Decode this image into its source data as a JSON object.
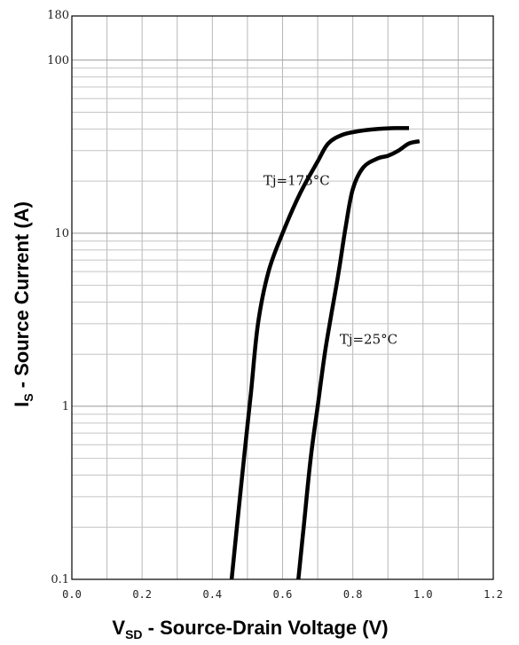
{
  "chart_data": {
    "type": "line",
    "title": "",
    "xlabel": {
      "main": "V",
      "sub": "SD",
      "rest": " - Source-Drain Voltage (V)"
    },
    "ylabel": {
      "main": "I",
      "sub": "S",
      "rest": " - Source Current (A)"
    },
    "xlim": [
      0.0,
      1.2
    ],
    "ylim": [
      0.1,
      180
    ],
    "yscale": "log",
    "grid": true,
    "x_ticks": [
      "0.0",
      "0.2",
      "0.4",
      "0.6",
      "0.8",
      "1.0",
      "1.2"
    ],
    "y_ticks": [
      {
        "value": 0.1,
        "label": "0.1"
      },
      {
        "value": 1,
        "label": "1"
      },
      {
        "value": 10,
        "label": "10"
      },
      {
        "value": 100,
        "label": "100"
      },
      {
        "value": 180,
        "label": "180"
      }
    ],
    "series": [
      {
        "name": "Tj=175°C",
        "x": [
          0.455,
          0.47,
          0.49,
          0.51,
          0.53,
          0.56,
          0.6,
          0.65,
          0.7,
          0.73,
          0.77,
          0.82,
          0.87,
          0.92,
          0.96
        ],
        "y": [
          0.1,
          0.2,
          0.5,
          1.2,
          3.0,
          6.0,
          10,
          17,
          26,
          33,
          37,
          39,
          40,
          40.5,
          40.5
        ]
      },
      {
        "name": "Tj=25°C",
        "x": [
          0.645,
          0.66,
          0.68,
          0.7,
          0.72,
          0.74,
          0.76,
          0.78,
          0.8,
          0.83,
          0.87,
          0.9,
          0.93,
          0.96,
          0.99
        ],
        "y": [
          0.1,
          0.2,
          0.5,
          1.0,
          2.0,
          3.5,
          6.0,
          11,
          18,
          24,
          27,
          28,
          30,
          33,
          34
        ]
      }
    ],
    "annotations": [
      {
        "text": "Tj=175°C",
        "x": 0.64,
        "y": 19
      },
      {
        "text": "Tj=25°C",
        "x": 0.845,
        "y": 2.3
      }
    ]
  }
}
